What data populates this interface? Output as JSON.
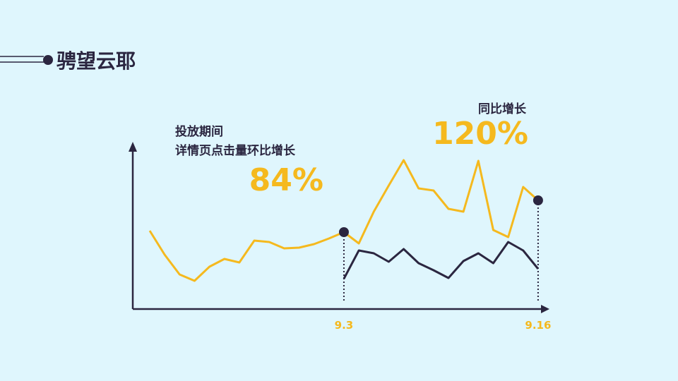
{
  "header": {
    "title": "骋望云耶"
  },
  "annotations": [
    {
      "label": "投放期间",
      "sublabel": "详情页点击量环比增长",
      "value": "84%"
    },
    {
      "label": "同比增长",
      "value": "120%"
    }
  ],
  "chart_data": {
    "type": "line",
    "categories": [
      null,
      null,
      null,
      null,
      null,
      null,
      null,
      null,
      null,
      null,
      null,
      null,
      null,
      "9.3",
      null,
      null,
      null,
      null,
      null,
      null,
      null,
      null,
      null,
      null,
      null,
      null,
      "9.16"
    ],
    "series": [
      {
        "color": "#f5b91e",
        "values": [
          111,
          77,
          49,
          40,
          60,
          71,
          66,
          97,
          95,
          86,
          87,
          92,
          100,
          109,
          93,
          138,
          175,
          211,
          171,
          168,
          142,
          138,
          210,
          112,
          102,
          173,
          154
        ]
      },
      {
        "color": "#2b2640",
        "values": [
          null,
          null,
          null,
          null,
          null,
          null,
          null,
          null,
          null,
          null,
          null,
          null,
          null,
          43,
          83,
          79,
          67,
          85,
          65,
          55,
          44,
          68,
          79,
          65,
          95,
          83,
          57
        ]
      }
    ],
    "ylim": [
      0,
      233
    ]
  }
}
